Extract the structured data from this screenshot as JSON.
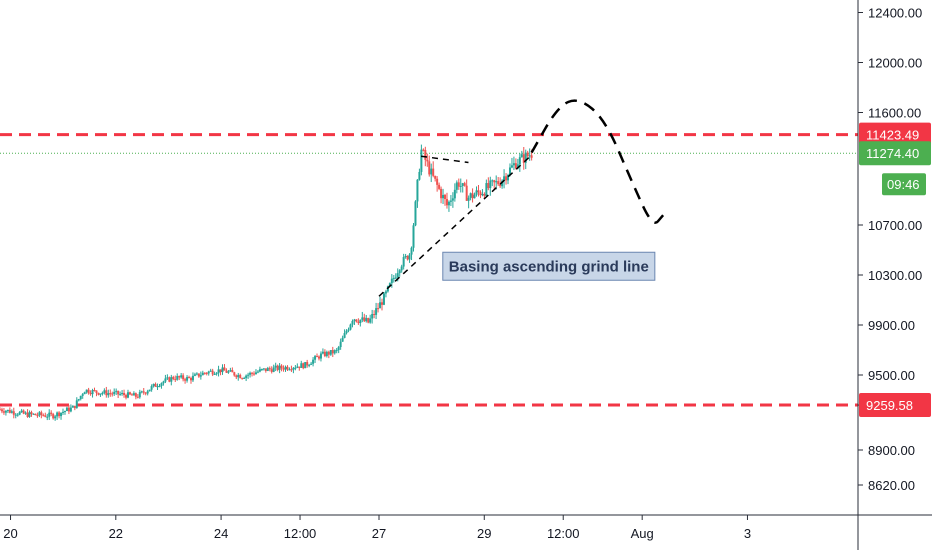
{
  "chart_data": {
    "type": "candlestick",
    "colors": {
      "up": "#26a69a",
      "down": "#ef5350",
      "level_line": "#f23645",
      "last_price_line": "#4caf50",
      "annotation_bg": "#c8d6e8",
      "annotation_border": "#6a86b0",
      "axis_line": "#2a2e39",
      "text": "#131722"
    },
    "y_axis": {
      "range": [
        8380,
        12500
      ],
      "ticks": [
        "12400.00",
        "12000.00",
        "11600.00",
        "10700.00",
        "10300.00",
        "9900.00",
        "9500.00",
        "9259.58",
        "8900.00",
        "8620.00"
      ]
    },
    "x_axis": {
      "range": [
        0,
        16.3
      ],
      "ticks": [
        {
          "x": 0.2,
          "label": "20"
        },
        {
          "x": 2.2,
          "label": "22"
        },
        {
          "x": 4.2,
          "label": "24"
        },
        {
          "x": 5.7,
          "label": "12:00"
        },
        {
          "x": 7.2,
          "label": "27"
        },
        {
          "x": 9.2,
          "label": "29"
        },
        {
          "x": 10.7,
          "label": "12:00"
        },
        {
          "x": 12.2,
          "label": "Aug"
        },
        {
          "x": 14.2,
          "label": "3"
        }
      ]
    },
    "price_path": [
      [
        0,
        9225
      ],
      [
        0.5,
        9185
      ],
      [
        1.0,
        9175
      ],
      [
        1.4,
        9240
      ],
      [
        1.6,
        9380
      ],
      [
        1.8,
        9365
      ],
      [
        2.2,
        9350
      ],
      [
        2.6,
        9330
      ],
      [
        3.0,
        9430
      ],
      [
        3.3,
        9480
      ],
      [
        3.6,
        9470
      ],
      [
        3.9,
        9520
      ],
      [
        4.2,
        9540
      ],
      [
        4.6,
        9490
      ],
      [
        5.0,
        9540
      ],
      [
        5.4,
        9560
      ],
      [
        5.8,
        9580
      ],
      [
        6.1,
        9660
      ],
      [
        6.4,
        9690
      ],
      [
        6.7,
        9960
      ],
      [
        7.0,
        9920
      ],
      [
        7.3,
        10120
      ],
      [
        7.6,
        10380
      ],
      [
        7.8,
        10480
      ],
      [
        8.0,
        11300
      ],
      [
        8.2,
        11100
      ],
      [
        8.5,
        10850
      ],
      [
        8.7,
        11050
      ],
      [
        8.9,
        10920
      ],
      [
        9.2,
        10980
      ],
      [
        9.5,
        11050
      ],
      [
        9.8,
        11200
      ],
      [
        10.1,
        11274
      ]
    ],
    "levels": [
      {
        "price": 11423.49,
        "label": "11423.49",
        "color": "#f23645"
      },
      {
        "price": 9259.58,
        "label": "9259.58",
        "color": "#f23645"
      }
    ],
    "last_price": {
      "price": 11274.4,
      "label": "11274.40",
      "countdown": "09:46",
      "color": "#4caf50"
    },
    "drawings": {
      "ascending_line": [
        [
          7.2,
          10130
        ],
        [
          10.1,
          11260
        ]
      ],
      "top_line": [
        [
          8.0,
          11250
        ],
        [
          8.9,
          11200
        ]
      ],
      "projection": [
        [
          10.1,
          11280
        ],
        [
          10.6,
          11650
        ],
        [
          11.0,
          11720
        ],
        [
          11.5,
          11540
        ],
        [
          12.0,
          11050
        ],
        [
          12.4,
          10680
        ],
        [
          12.6,
          10780
        ]
      ]
    },
    "annotation": {
      "text": "Basing ascending grind line",
      "x": 8.45,
      "y": 10370
    }
  }
}
